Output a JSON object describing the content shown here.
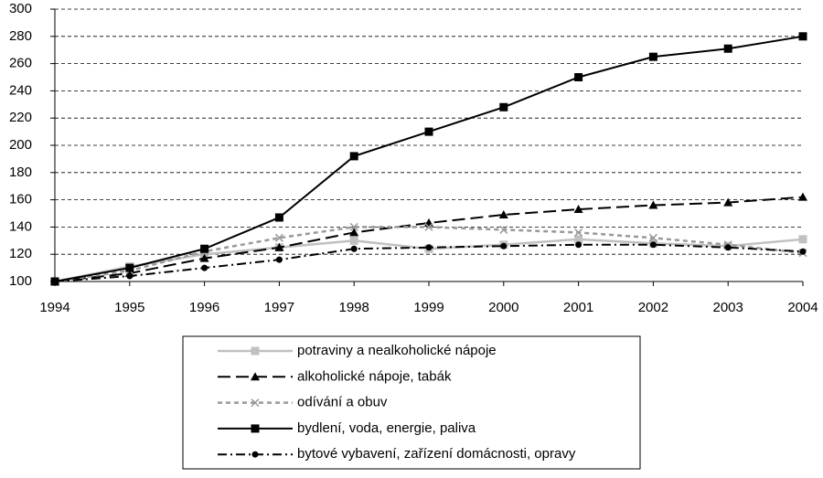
{
  "chart_data": {
    "type": "line",
    "categories": [
      "1994",
      "1995",
      "1996",
      "1997",
      "1998",
      "1999",
      "2000",
      "2001",
      "2002",
      "2003",
      "2004"
    ],
    "ylim": [
      100,
      300
    ],
    "yticks": [
      100,
      120,
      140,
      160,
      180,
      200,
      220,
      240,
      260,
      280,
      300
    ],
    "grid": true,
    "series": [
      {
        "name": "potraviny a nealkoholické nápoje",
        "color": "#c0c0c0",
        "line_style": "solid",
        "marker": "square",
        "values": [
          100,
          111,
          120,
          125,
          130,
          124,
          127,
          131,
          128,
          126,
          131
        ]
      },
      {
        "name": "alkoholické nápoje, tabák",
        "color": "#000000",
        "line_style": "long-dash",
        "marker": "triangle",
        "values": [
          100,
          106,
          117,
          125,
          136,
          143,
          149,
          153,
          156,
          158,
          162
        ]
      },
      {
        "name": "odívání a obuv",
        "color": "#999999",
        "line_style": "dashed",
        "marker": "x",
        "values": [
          100,
          108,
          122,
          132,
          140,
          140,
          138,
          136,
          132,
          127,
          121
        ]
      },
      {
        "name": "bydlení, voda, energie, paliva",
        "color": "#000000",
        "line_style": "solid",
        "marker": "square",
        "values": [
          100,
          110,
          124,
          147,
          192,
          210,
          228,
          250,
          265,
          271,
          280
        ]
      },
      {
        "name": "bytové vybavení, zařízení domácnosti, opravy",
        "color": "#000000",
        "line_style": "dash-dot",
        "marker": "circle",
        "values": [
          100,
          104,
          110,
          116,
          124,
          125,
          126,
          127,
          127,
          125,
          122
        ]
      }
    ]
  }
}
